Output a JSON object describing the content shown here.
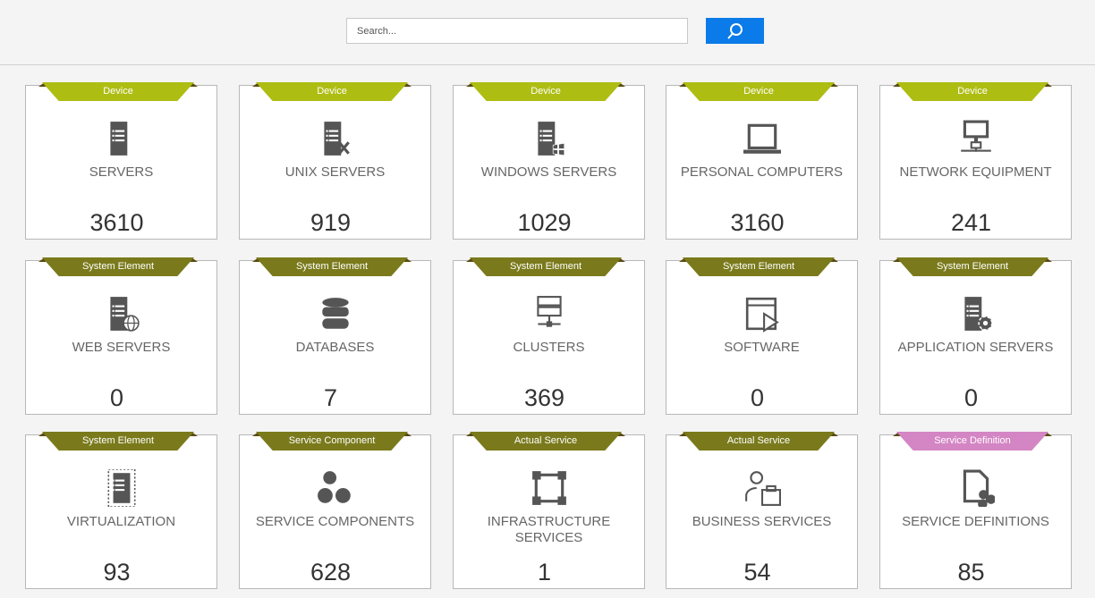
{
  "search": {
    "placeholder": "Search...",
    "button_icon": "search-icon"
  },
  "colors": {
    "device": "#aebd12",
    "system": "#7a7a1c",
    "definition": "#d485c4",
    "accent": "#0a7be8"
  },
  "cards": [
    {
      "category": "Device",
      "label": "SERVERS",
      "count": "3610",
      "icon": "server"
    },
    {
      "category": "Device",
      "label": "UNIX SERVERS",
      "count": "919",
      "icon": "unix-server"
    },
    {
      "category": "Device",
      "label": "WINDOWS SERVERS",
      "count": "1029",
      "icon": "windows-server"
    },
    {
      "category": "Device",
      "label": "PERSONAL COMPUTERS",
      "count": "3160",
      "icon": "laptop"
    },
    {
      "category": "Device",
      "label": "NETWORK EQUIPMENT",
      "count": "241",
      "icon": "network"
    },
    {
      "category": "System Element",
      "label": "WEB SERVERS",
      "count": "0",
      "icon": "web-server"
    },
    {
      "category": "System Element",
      "label": "DATABASES",
      "count": "7",
      "icon": "database"
    },
    {
      "category": "System Element",
      "label": "CLUSTERS",
      "count": "369",
      "icon": "cluster"
    },
    {
      "category": "System Element",
      "label": "SOFTWARE",
      "count": "0",
      "icon": "software"
    },
    {
      "category": "System Element",
      "label": "APPLICATION SERVERS",
      "count": "0",
      "icon": "app-server"
    },
    {
      "category": "System Element",
      "label": "VIRTUALIZATION",
      "count": "93",
      "icon": "virtualization"
    },
    {
      "category": "Service Component",
      "label": "SERVICE COMPONENTS",
      "count": "628",
      "icon": "components"
    },
    {
      "category": "Actual Service",
      "label": "INFRASTRUCTURE SERVICES",
      "count": "1",
      "icon": "infrastructure"
    },
    {
      "category": "Actual Service",
      "label": "BUSINESS SERVICES",
      "count": "54",
      "icon": "business"
    },
    {
      "category": "Service Definition",
      "label": "SERVICE DEFINITIONS",
      "count": "85",
      "icon": "definition"
    }
  ]
}
